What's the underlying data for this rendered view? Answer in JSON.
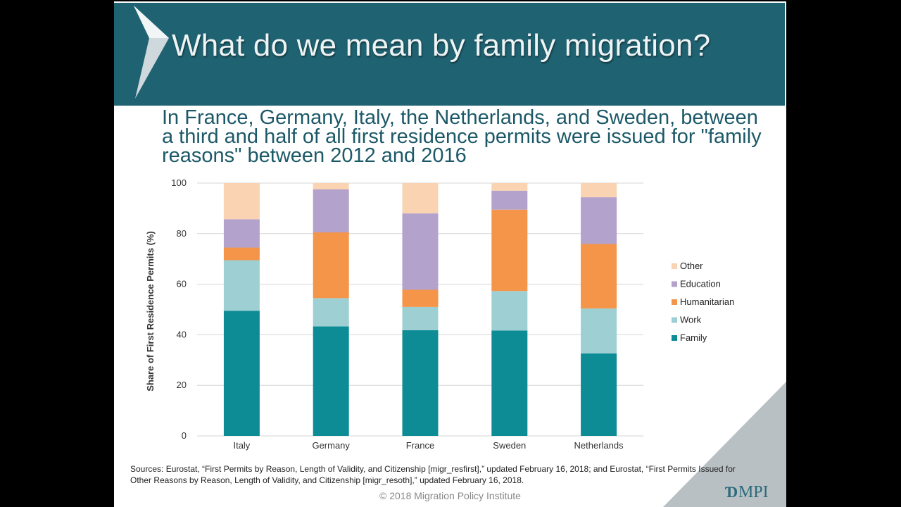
{
  "slide": {
    "title": "What do we mean by family migration?",
    "headline": "In France, Germany, Italy, the Netherlands, and Sweden, between a third and half of all first residence permits were issued for \"family reasons\" between 2012 and 2016",
    "sources": "Sources: Eurostat, “First Permits by Reason, Length of Validity, and Citizenship [migr_resfirst],” updated February 16, 2018; and Eurostat, “First Permits Issued for Other Reasons by Reason, Length of Validity, and Citizenship [migr_resoth],” updated February 16, 2018.",
    "copyright": "© 2018 Migration Policy Institute",
    "logo_mark": "Ɗ",
    "logo_text": "MPI"
  },
  "colors": {
    "title_bar": "#1f6271",
    "family": "#0e8c96",
    "work": "#9ecfd2",
    "humanitarian": "#f4954a",
    "education": "#b3a2cb",
    "other": "#f9d3b2"
  },
  "chart_data": {
    "type": "bar",
    "stacked": true,
    "categories": [
      "Italy",
      "Germany",
      "France",
      "Sweden",
      "Netherlands"
    ],
    "ylabel": "Share of First Residence Permits (%)",
    "xlabel": "",
    "ylim": [
      0,
      100
    ],
    "yticks": [
      0,
      20,
      40,
      60,
      80,
      100
    ],
    "grid": true,
    "legend_position": "right",
    "series": [
      {
        "name": "Family",
        "color": "#0e8c96",
        "values": [
          49.5,
          43.3,
          41.8,
          41.7,
          32.6
        ]
      },
      {
        "name": "Work",
        "color": "#9ecfd2",
        "values": [
          20.0,
          11.2,
          9.2,
          15.6,
          17.8
        ]
      },
      {
        "name": "Humanitarian",
        "color": "#f4954a",
        "values": [
          5.0,
          26.0,
          6.8,
          32.2,
          25.5
        ]
      },
      {
        "name": "Education",
        "color": "#b3a2cb",
        "values": [
          11.2,
          17.0,
          30.2,
          7.5,
          18.5
        ]
      },
      {
        "name": "Other",
        "color": "#f9d3b2",
        "values": [
          14.3,
          2.5,
          12.0,
          3.0,
          5.6
        ]
      }
    ]
  }
}
